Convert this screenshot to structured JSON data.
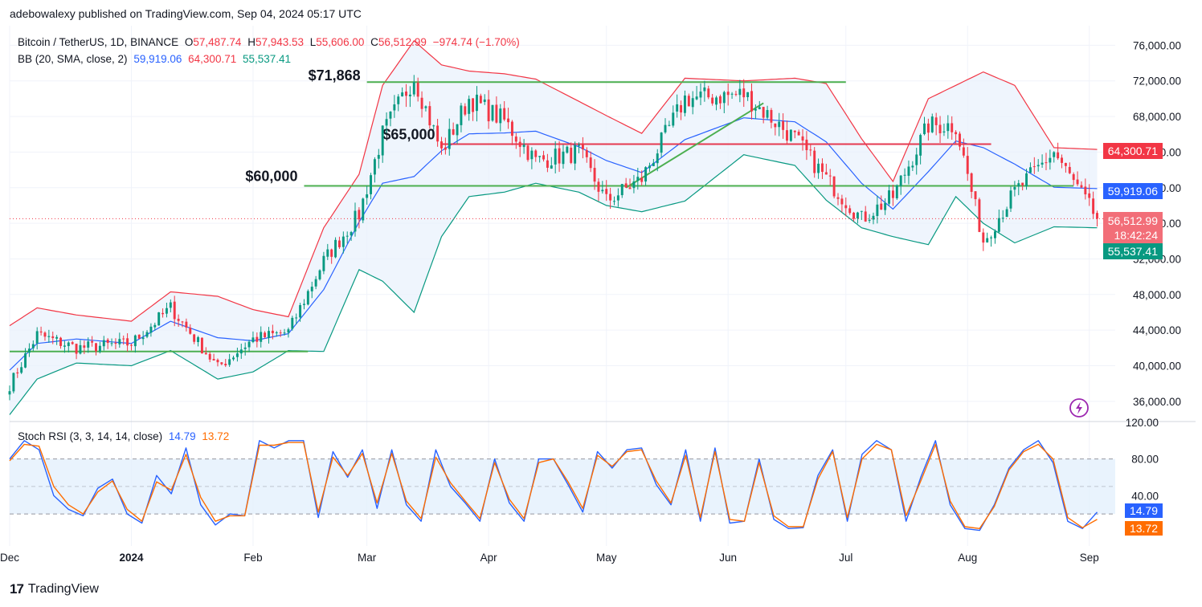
{
  "header": {
    "published_line": "adebowalexy published on TradingView.com, Sep 04, 2024 05:17 UTC"
  },
  "legend": {
    "symbol": "Bitcoin / TetherUS, 1D, BINANCE",
    "open_label": "O",
    "open": "57,487.74",
    "high_label": "H",
    "high": "57,943.53",
    "low_label": "L",
    "low": "55,606.00",
    "close_label": "C",
    "close": "56,512.99",
    "change": "−974.74 (−1.70%)",
    "bb_label": "BB (20, SMA, close, 2)",
    "bb_basis": "59,919.06",
    "bb_upper": "64,300.71",
    "bb_lower": "55,537.41",
    "rsi_label": "Stoch RSI (3, 3, 14, 14, close)",
    "rsi_k": "14.79",
    "rsi_d": "13.72"
  },
  "footer": {
    "brand": "TradingView",
    "mark": "17"
  },
  "price_labels": {
    "upper": "64,300.71",
    "basis": "59,919.06",
    "last": "56,512.99",
    "countdown": "18:42:24",
    "lower": "55,537.41",
    "rsi_k": "14.79",
    "rsi_d": "13.72"
  },
  "colors": {
    "up": "#089981",
    "down": "#f23645",
    "basis": "#2962ff",
    "band_upper": "#f23645",
    "band_lower": "#089981",
    "band_fill": "#e8f1fc",
    "hline_green": "#4caf50",
    "hline_red": "#e53950",
    "rsi_k": "#2962ff",
    "rsi_d": "#ff6d00",
    "rsi_fill": "#e3f0fc"
  },
  "chart_data": [
    {
      "type": "candlestick",
      "title": "Bitcoin / TetherUS, 1D, BINANCE",
      "y_axis_ticks": [
        "76,000.00",
        "72,000.00",
        "68,000.00",
        "64,000.00",
        "60,000.00",
        "56,000.00",
        "52,000.00",
        "48,000.00",
        "44,000.00",
        "40,000.00",
        "36,000.00"
      ],
      "y_axis_values": [
        76000,
        72000,
        68000,
        64000,
        60000,
        56000,
        52000,
        48000,
        44000,
        40000,
        36000
      ],
      "ylim": [
        34000,
        78200
      ],
      "x_axis_ticks": [
        "Dec",
        "2024",
        "Feb",
        "Mar",
        "Apr",
        "May",
        "Jun",
        "Jul",
        "Aug",
        "Sep"
      ],
      "x_axis_start": "2023-12-01",
      "x_axis_tick_dates": [
        "2023-12-01",
        "2024-01-01",
        "2024-02-01",
        "2024-03-01",
        "2024-04-01",
        "2024-05-01",
        "2024-06-01",
        "2024-07-01",
        "2024-08-01",
        "2024-09-01"
      ],
      "annotations": [
        {
          "text": "$71,868",
          "price": 71868,
          "color": "green",
          "from": "2024-03-01",
          "to": "2024-07-01"
        },
        {
          "text": "$65,000",
          "price": 64900,
          "color": "red",
          "from": "2024-03-20",
          "to": "2024-08-07"
        },
        {
          "text": "$60,000",
          "price": 60200,
          "color": "green",
          "from": "2024-02-14",
          "to": "2024-08-28"
        },
        {
          "text": "",
          "price": 41600,
          "color": "green",
          "from": "2023-12-01",
          "to": "2024-02-15"
        }
      ],
      "trendline": {
        "from": [
          "2024-05-06",
          60000
        ],
        "to": [
          "2024-06-10",
          69500
        ],
        "color": "green"
      },
      "close_price": 56512.99,
      "keyframes": [
        [
          "2023-12-01",
          37800,
          44500,
          34500
        ],
        [
          "2023-12-08",
          43500,
          46500,
          38500
        ],
        [
          "2023-12-18",
          42000,
          45700,
          40300
        ],
        [
          "2024-01-01",
          42500,
          45000,
          40000
        ],
        [
          "2024-01-11",
          46500,
          48300,
          41700
        ],
        [
          "2024-01-23",
          39800,
          47800,
          38500
        ],
        [
          "2024-02-01",
          43000,
          46300,
          39300
        ],
        [
          "2024-02-10",
          43800,
          45500,
          41700
        ],
        [
          "2024-02-19",
          51800,
          55500,
          41600
        ],
        [
          "2024-02-28",
          57000,
          61500,
          50800
        ],
        [
          "2024-03-05",
          66000,
          71500,
          49500
        ],
        [
          "2024-03-13",
          72500,
          76500,
          46000
        ],
        [
          "2024-03-20",
          64000,
          73800,
          54500
        ],
        [
          "2024-03-27",
          70000,
          73100,
          59000
        ],
        [
          "2024-04-05",
          67500,
          72800,
          59500
        ],
        [
          "2024-04-13",
          63000,
          72200,
          60500
        ],
        [
          "2024-04-24",
          64000,
          69700,
          59500
        ],
        [
          "2024-05-01",
          58500,
          68100,
          58000
        ],
        [
          "2024-05-10",
          61000,
          66100,
          57300
        ],
        [
          "2024-05-21",
          70000,
          72300,
          58500
        ],
        [
          "2024-06-05",
          70500,
          72000,
          63700
        ],
        [
          "2024-06-18",
          65500,
          72300,
          62500
        ],
        [
          "2024-06-26",
          61000,
          71700,
          58600
        ],
        [
          "2024-07-05",
          56500,
          65500,
          55500
        ],
        [
          "2024-07-13",
          59000,
          60700,
          54500
        ],
        [
          "2024-07-22",
          67000,
          70000,
          53600
        ],
        [
          "2024-07-29",
          67000,
          71500,
          59000
        ],
        [
          "2024-08-05",
          54000,
          73000,
          56000
        ],
        [
          "2024-08-13",
          59500,
          71500,
          53800
        ],
        [
          "2024-08-23",
          64000,
          64500,
          55600
        ],
        [
          "2024-09-03",
          56500,
          64300,
          55500
        ]
      ]
    },
    {
      "type": "line",
      "title": "Stoch RSI (3, 3, 14, 14, close)",
      "y_axis_ticks": [
        "120.00",
        "80.00",
        "40.00"
      ],
      "y_axis_values": [
        120,
        80,
        40
      ],
      "ylim": [
        -15,
        120
      ],
      "band": [
        20,
        80
      ],
      "midline": 50,
      "series": [
        {
          "name": "K",
          "values": [
            80,
            100,
            90,
            40,
            25,
            18,
            48,
            58,
            20,
            10,
            62,
            42,
            92,
            30,
            8,
            20,
            18,
            100,
            92,
            100,
            100,
            16,
            88,
            60,
            90,
            26,
            90,
            30,
            12,
            90,
            50,
            32,
            12,
            80,
            32,
            12,
            80,
            80,
            52,
            22,
            88,
            70,
            90,
            92,
            52,
            30,
            90,
            12,
            92,
            10,
            12,
            80,
            14,
            4,
            5,
            62,
            90,
            12,
            85,
            100,
            90,
            12,
            60,
            100,
            30,
            4,
            2,
            30,
            70,
            90,
            100,
            76,
            12,
            4,
            22
          ]
        },
        {
          "name": "D",
          "values": [
            78,
            96,
            94,
            50,
            30,
            20,
            44,
            56,
            25,
            12,
            55,
            46,
            85,
            38,
            12,
            18,
            18,
            95,
            95,
            98,
            98,
            22,
            82,
            62,
            86,
            32,
            86,
            34,
            15,
            82,
            54,
            34,
            15,
            76,
            36,
            15,
            76,
            80,
            55,
            26,
            84,
            72,
            88,
            90,
            56,
            32,
            84,
            16,
            88,
            14,
            12,
            76,
            18,
            6,
            6,
            58,
            88,
            16,
            80,
            96,
            90,
            18,
            56,
            96,
            34,
            6,
            4,
            28,
            68,
            88,
            96,
            80,
            16,
            5,
            14
          ]
        }
      ]
    }
  ]
}
